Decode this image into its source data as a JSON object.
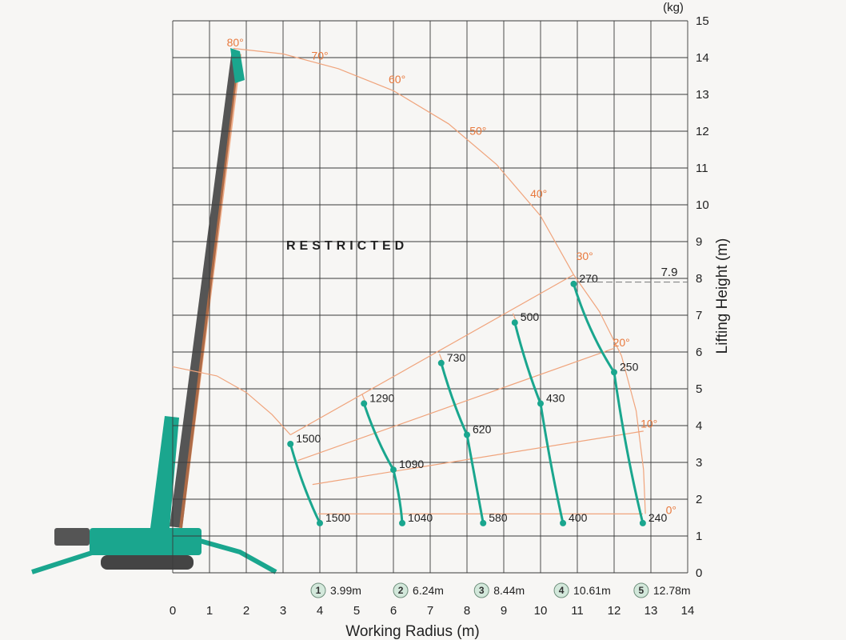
{
  "chart_data": {
    "type": "line",
    "xlabel": "Working Radius (m)",
    "ylabel": "Lifting Height (m)",
    "unit_label": "(kg)",
    "xlim": [
      0,
      14
    ],
    "ylim": [
      0,
      15
    ],
    "x_ticks": [
      "0",
      "1",
      "2",
      "3",
      "4",
      "5",
      "6",
      "7",
      "8",
      "9",
      "10",
      "11",
      "12",
      "13",
      "14"
    ],
    "y_ticks": [
      "0",
      "1",
      "2",
      "3",
      "4",
      "5",
      "6",
      "7",
      "8",
      "9",
      "10",
      "11",
      "12",
      "13",
      "14",
      "15"
    ],
    "grid": true,
    "region_label": "RESTRICTED",
    "max_height_label": "7.9",
    "max_height_value": 7.9,
    "boom_angles": [
      {
        "label": "80°",
        "angle": 80,
        "x": 1.7,
        "y": 14.3
      },
      {
        "label": "70°",
        "angle": 70,
        "x": 4.0,
        "y": 13.95
      },
      {
        "label": "60°",
        "angle": 60,
        "x": 6.1,
        "y": 13.3
      },
      {
        "label": "50°",
        "angle": 50,
        "x": 8.3,
        "y": 11.9
      },
      {
        "label": "40°",
        "angle": 40,
        "x": 9.95,
        "y": 10.2
      },
      {
        "label": "30°",
        "angle": 30,
        "x": 11.2,
        "y": 8.5
      },
      {
        "label": "20°",
        "angle": 20,
        "x": 12.2,
        "y": 6.15
      },
      {
        "label": "10°",
        "angle": 10,
        "x": 12.95,
        "y": 3.95
      },
      {
        "label": "0°",
        "angle": 0,
        "x": 13.55,
        "y": 1.6
      }
    ],
    "series": [
      {
        "name": "1",
        "radius_label": "3.99m",
        "points": [
          {
            "x": 3.2,
            "y": 3.5,
            "value": "1500"
          },
          {
            "x": 4.0,
            "y": 1.35,
            "value": "1500"
          }
        ]
      },
      {
        "name": "2",
        "radius_label": "6.24m",
        "points": [
          {
            "x": 5.2,
            "y": 4.6,
            "value": "1290"
          },
          {
            "x": 6.0,
            "y": 2.8,
            "value": "1090"
          },
          {
            "x": 6.24,
            "y": 1.35,
            "value": "1040"
          }
        ]
      },
      {
        "name": "3",
        "radius_label": "8.44m",
        "points": [
          {
            "x": 7.3,
            "y": 5.7,
            "value": "730"
          },
          {
            "x": 8.0,
            "y": 3.75,
            "value": "620"
          },
          {
            "x": 8.44,
            "y": 1.35,
            "value": "580"
          }
        ]
      },
      {
        "name": "4",
        "radius_label": "10.61m",
        "points": [
          {
            "x": 9.3,
            "y": 6.8,
            "value": "500"
          },
          {
            "x": 10.0,
            "y": 4.6,
            "value": "430"
          },
          {
            "x": 10.61,
            "y": 1.35,
            "value": "400"
          }
        ]
      },
      {
        "name": "5",
        "radius_label": "12.78m",
        "points": [
          {
            "x": 10.9,
            "y": 7.85,
            "value": "270"
          },
          {
            "x": 12.0,
            "y": 5.45,
            "value": "250"
          },
          {
            "x": 12.78,
            "y": 1.35,
            "value": "240"
          }
        ]
      }
    ]
  },
  "colors": {
    "curve": "#1aa68e",
    "angle": "#e8793d",
    "guide": "#f0a47c",
    "crane_body": "#1aa68e",
    "boom": "#555555"
  }
}
